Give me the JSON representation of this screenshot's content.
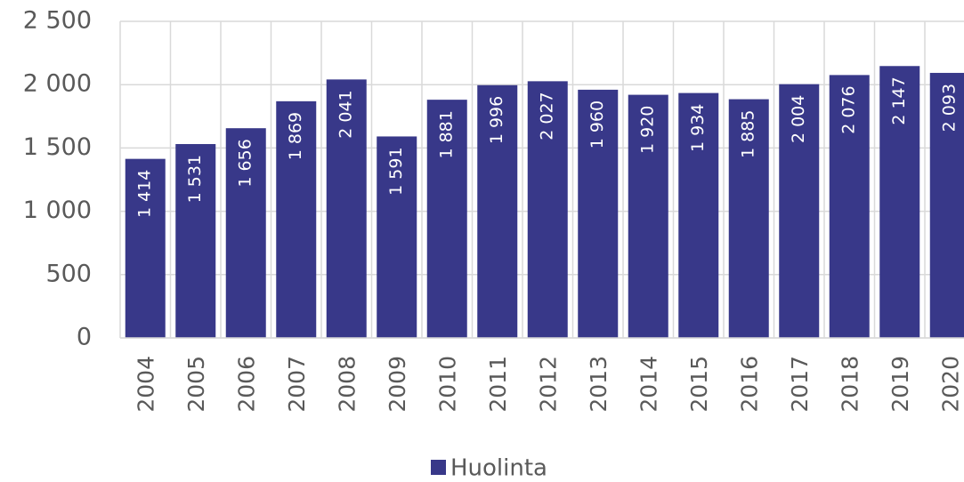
{
  "chart_data": {
    "type": "bar",
    "categories": [
      "2004",
      "2005",
      "2006",
      "2007",
      "2008",
      "2009",
      "2010",
      "2011",
      "2012",
      "2013",
      "2014",
      "2015",
      "2016",
      "2017",
      "2018",
      "2019",
      "2020"
    ],
    "series": [
      {
        "name": "Huolinta",
        "color": "#383889",
        "values": [
          1414,
          1531,
          1656,
          1869,
          2041,
          1591,
          1881,
          1996,
          2027,
          1960,
          1920,
          1934,
          1885,
          2004,
          2076,
          2147,
          2093
        ],
        "value_labels": [
          "1 414",
          "1 531",
          "1 656",
          "1 869",
          "2 041",
          "1 591",
          "1 881",
          "1 996",
          "2 027",
          "1 960",
          "1 920",
          "1 934",
          "1 885",
          "2 004",
          "2 076",
          "2 147",
          "2 093"
        ]
      }
    ],
    "ylim": [
      0,
      2500
    ],
    "yticks": [
      0,
      500,
      {
        "value": 1000,
        "label": "1 000"
      },
      {
        "value": 1500,
        "label": "1 500"
      },
      {
        "value": 2000,
        "label": "2 000"
      },
      {
        "value": 2500,
        "label": "2 500"
      }
    ],
    "grid": true,
    "legend": "bottom"
  }
}
